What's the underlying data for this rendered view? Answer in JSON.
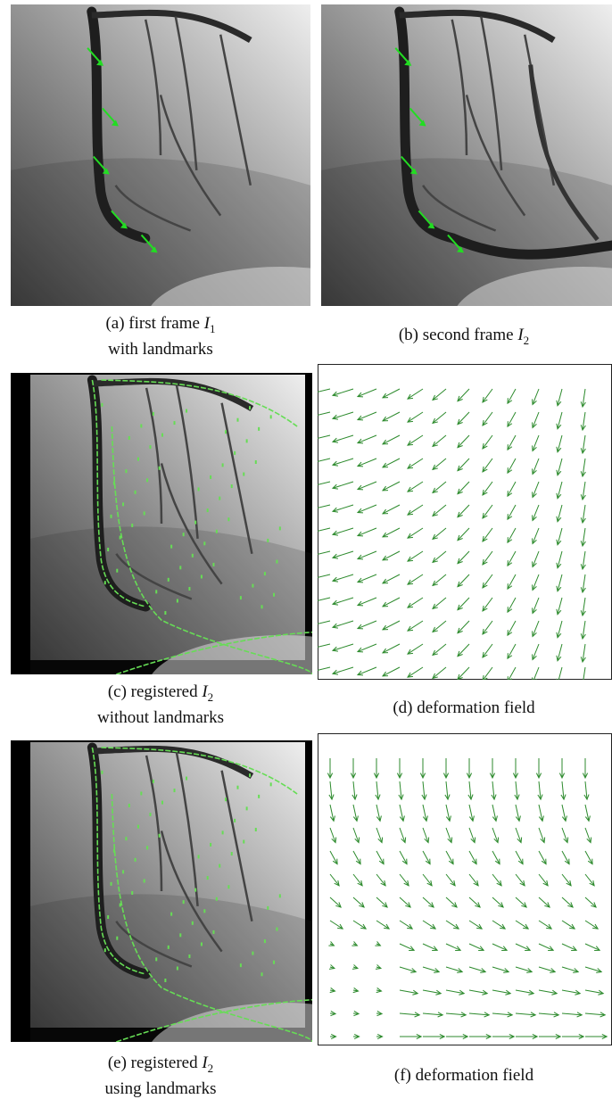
{
  "panels": [
    {
      "label": "(a)",
      "text": "first frame",
      "symbol": "I",
      "subscript": "1",
      "line2": "with landmarks"
    },
    {
      "label": "(b)",
      "text": "second frame",
      "symbol": "I",
      "subscript": "2"
    },
    {
      "label": "(c)",
      "text": "registered",
      "symbol": "I",
      "subscript": "2",
      "line2": "without landmarks"
    },
    {
      "label": "(d)",
      "text": "deformation field"
    },
    {
      "label": "(e)",
      "text": "registered",
      "symbol": "I",
      "subscript": "2",
      "line2": "using landmarks"
    },
    {
      "label": "(f)",
      "text": "deformation field"
    }
  ]
}
